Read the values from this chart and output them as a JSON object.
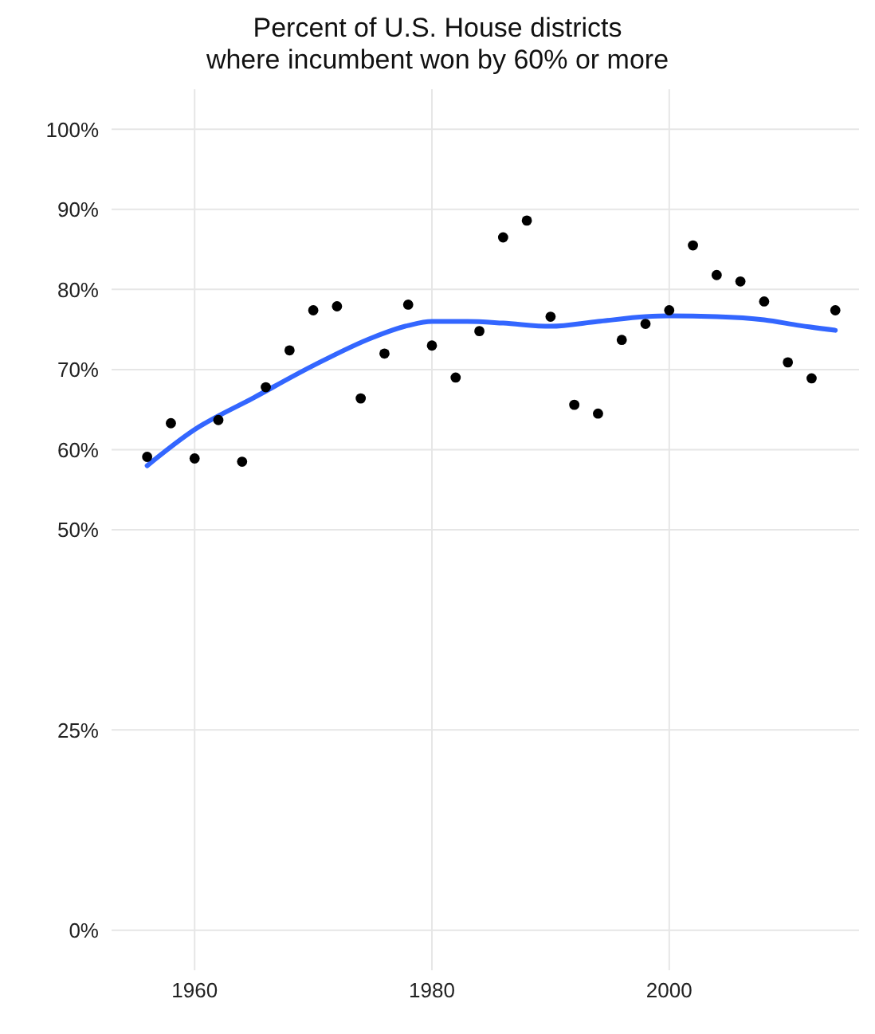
{
  "chart_data": {
    "type": "scatter",
    "title": "Percent of U.S. House districts\nwhere incumbent won by 60% or more",
    "xlim": [
      1953,
      2016
    ],
    "xticks": [
      1960,
      1980,
      2000
    ],
    "ylim": [
      -5,
      105
    ],
    "yticks": [
      {
        "value": 0,
        "label": "0%"
      },
      {
        "value": 25,
        "label": "25%"
      },
      {
        "value": 50,
        "label": "50%"
      },
      {
        "value": 60,
        "label": "60%"
      },
      {
        "value": 70,
        "label": "70%"
      },
      {
        "value": 80,
        "label": "80%"
      },
      {
        "value": 90,
        "label": "90%"
      },
      {
        "value": 100,
        "label": "100%"
      }
    ],
    "grid": true,
    "marker": "circle",
    "series": [
      {
        "color": "#000000",
        "x": [
          1956,
          1958,
          1960,
          1962,
          1964,
          1966,
          1968,
          1970,
          1972,
          1974,
          1976,
          1978,
          1980,
          1982,
          1984,
          1986,
          1988,
          1990,
          1992,
          1994,
          1996,
          1998,
          2000,
          2002,
          2004,
          2006,
          2008,
          2010,
          2012,
          2014
        ],
        "values": [
          59.1,
          63.3,
          58.9,
          63.7,
          58.5,
          67.8,
          72.4,
          77.4,
          77.9,
          66.4,
          72.0,
          78.1,
          73.0,
          69.0,
          74.8,
          86.5,
          88.6,
          76.6,
          65.6,
          64.5,
          73.7,
          75.7,
          77.4,
          85.5,
          81.8,
          81.0,
          78.5,
          70.9,
          68.9,
          77.4
        ]
      },
      {
        "type": "line",
        "color": "#3366ff",
        "marker": "none",
        "x": [
          1956,
          1960,
          1965,
          1970,
          1975,
          1978,
          1980,
          1983,
          1986,
          1990,
          1994,
          1998,
          2000,
          2004,
          2008,
          2011,
          2014
        ],
        "values": [
          58.0,
          62.5,
          66.5,
          70.5,
          74.0,
          75.5,
          76.0,
          76.0,
          75.8,
          75.4,
          76.0,
          76.6,
          76.7,
          76.6,
          76.2,
          75.5,
          74.9
        ]
      }
    ]
  }
}
